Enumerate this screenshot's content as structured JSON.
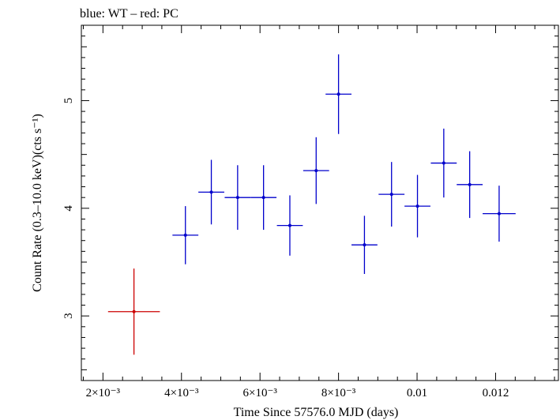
{
  "chart_data": {
    "type": "scatter",
    "title": "blue: WT – red: PC",
    "xlabel": "Time Since 57576.0 MJD (days)",
    "ylabel": "Count Rate (0.3–10.0 keV)(cts s⁻¹)",
    "xlim": [
      0.00145,
      0.0136
    ],
    "ylim": [
      2.4,
      5.7
    ],
    "x_ticks": [
      {
        "value": 0.002,
        "label": "2×10⁻³"
      },
      {
        "value": 0.004,
        "label": "4×10⁻³"
      },
      {
        "value": 0.006,
        "label": "6×10⁻³"
      },
      {
        "value": 0.008,
        "label": "8×10⁻³"
      },
      {
        "value": 0.01,
        "label": "0.01"
      },
      {
        "value": 0.012,
        "label": "0.012"
      }
    ],
    "y_ticks": [
      {
        "value": 3,
        "label": "3"
      },
      {
        "value": 4,
        "label": "4"
      },
      {
        "value": 5,
        "label": "5"
      }
    ],
    "series": [
      {
        "color": "#cc0000",
        "points": [
          {
            "x": 0.00279,
            "xerr": 0.00066,
            "y": 3.04,
            "yerr": 0.4
          }
        ]
      },
      {
        "color": "#0000cc",
        "points": [
          {
            "x": 0.0041,
            "xerr": 0.00033,
            "y": 3.75,
            "yerr": 0.27
          },
          {
            "x": 0.00476,
            "xerr": 0.00033,
            "y": 4.15,
            "yerr": 0.3
          },
          {
            "x": 0.00543,
            "xerr": 0.00033,
            "y": 4.1,
            "yerr": 0.3
          },
          {
            "x": 0.00609,
            "xerr": 0.00033,
            "y": 4.1,
            "yerr": 0.3
          },
          {
            "x": 0.00676,
            "xerr": 0.00033,
            "y": 3.84,
            "yerr": 0.28
          },
          {
            "x": 0.00743,
            "xerr": 0.00033,
            "y": 4.35,
            "yerr": 0.31
          },
          {
            "x": 0.008,
            "xerr": 0.00033,
            "y": 5.06,
            "yerr": 0.37
          },
          {
            "x": 0.00866,
            "xerr": 0.00033,
            "y": 3.66,
            "yerr": 0.27
          },
          {
            "x": 0.00935,
            "xerr": 0.00033,
            "y": 4.13,
            "yerr": 0.3
          },
          {
            "x": 0.01001,
            "xerr": 0.00033,
            "y": 4.02,
            "yerr": 0.29
          },
          {
            "x": 0.01068,
            "xerr": 0.00033,
            "y": 4.42,
            "yerr": 0.32
          },
          {
            "x": 0.01134,
            "xerr": 0.00033,
            "y": 4.22,
            "yerr": 0.31
          },
          {
            "x": 0.01209,
            "xerr": 0.00042,
            "y": 3.95,
            "yerr": 0.26
          }
        ]
      }
    ]
  }
}
